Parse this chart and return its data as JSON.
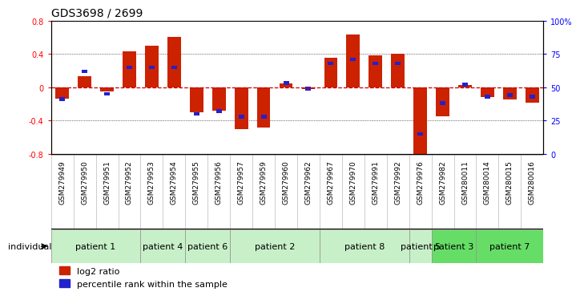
{
  "title": "GDS3698 / 2699",
  "samples": [
    "GSM279949",
    "GSM279950",
    "GSM279951",
    "GSM279952",
    "GSM279953",
    "GSM279954",
    "GSM279955",
    "GSM279956",
    "GSM279957",
    "GSM279959",
    "GSM279960",
    "GSM279962",
    "GSM279967",
    "GSM279970",
    "GSM279991",
    "GSM279992",
    "GSM279976",
    "GSM279982",
    "GSM280011",
    "GSM280014",
    "GSM280015",
    "GSM280016"
  ],
  "log2_ratio": [
    -0.14,
    0.13,
    -0.05,
    0.43,
    0.5,
    0.6,
    -0.3,
    -0.28,
    -0.5,
    -0.48,
    0.05,
    -0.02,
    0.35,
    0.63,
    0.38,
    0.4,
    -0.85,
    -0.35,
    0.03,
    -0.12,
    -0.15,
    -0.18
  ],
  "percentile_rank": [
    41,
    62,
    45,
    65,
    65,
    65,
    30,
    32,
    28,
    28,
    53,
    49,
    68,
    71,
    68,
    68,
    15,
    38,
    52,
    43,
    44,
    43
  ],
  "patients": [
    {
      "label": "patient 1",
      "start": 0,
      "end": 4,
      "color": "#c8f0c8"
    },
    {
      "label": "patient 4",
      "start": 4,
      "end": 6,
      "color": "#c8f0c8"
    },
    {
      "label": "patient 6",
      "start": 6,
      "end": 8,
      "color": "#c8f0c8"
    },
    {
      "label": "patient 2",
      "start": 8,
      "end": 12,
      "color": "#c8f0c8"
    },
    {
      "label": "patient 8",
      "start": 12,
      "end": 16,
      "color": "#c8f0c8"
    },
    {
      "label": "patient 5",
      "start": 16,
      "end": 17,
      "color": "#c8f0c8"
    },
    {
      "label": "patient 3",
      "start": 17,
      "end": 19,
      "color": "#66dd66"
    },
    {
      "label": "patient 7",
      "start": 19,
      "end": 22,
      "color": "#66dd66"
    }
  ],
  "ylim_left": [
    -0.8,
    0.8
  ],
  "ylim_right": [
    0,
    100
  ],
  "yticks_left": [
    -0.8,
    -0.4,
    0.0,
    0.4,
    0.8
  ],
  "yticks_right": [
    0,
    25,
    50,
    75,
    100
  ],
  "ytick_labels_right": [
    "0",
    "25",
    "50",
    "75",
    "100%"
  ],
  "bar_color_red": "#cc2200",
  "bar_color_blue": "#2222cc",
  "zero_line_color": "#cc0000",
  "bg_color": "#ffffff",
  "sample_band_color": "#d8d8d8",
  "tick_fontsize": 7,
  "sample_fontsize": 6.5,
  "patient_fontsize": 8,
  "title_fontsize": 10,
  "individual_label": "individual",
  "legend_fontsize": 8
}
